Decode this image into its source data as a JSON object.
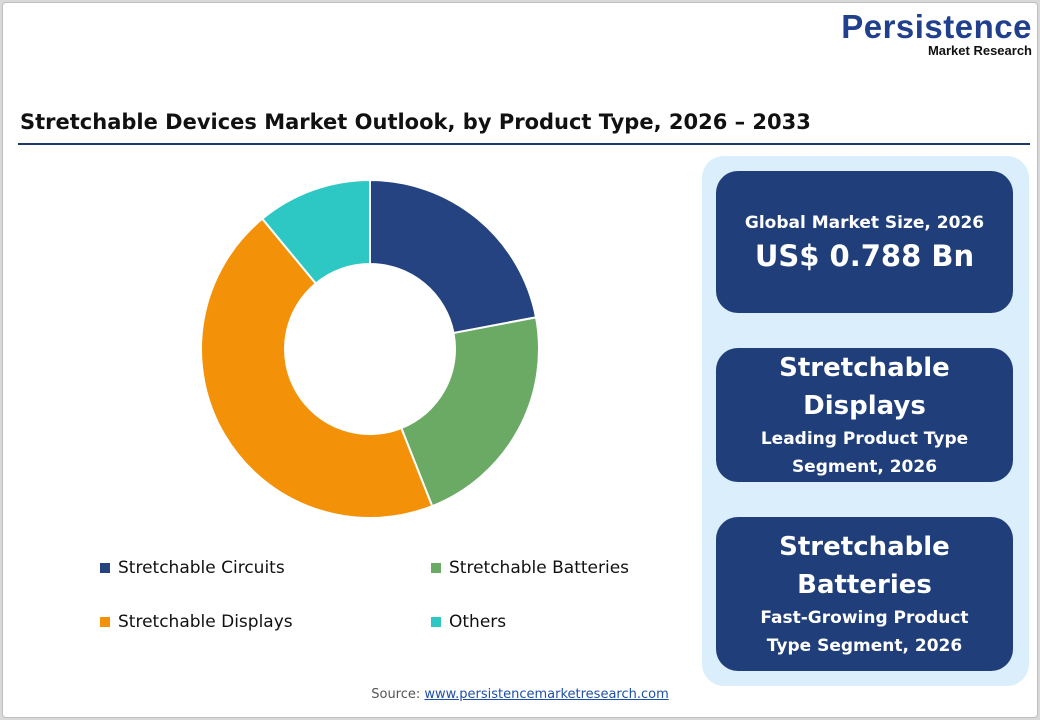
{
  "logo": {
    "main": "Persistence",
    "sub": "Market Research"
  },
  "chart_data": {
    "type": "pie",
    "subtype": "donut",
    "title": "Stretchable Devices Market Outlook, by Product Type, 2026 – 2033",
    "categories": [
      "Stretchable Circuits",
      "Stretchable Batteries",
      "Stretchable Displays",
      "Others"
    ],
    "values": [
      22,
      22,
      45,
      11
    ],
    "unit": "%",
    "colors": [
      "#254380",
      "#6aaa64",
      "#f39208",
      "#2ec8c4"
    ],
    "legend_position": "bottom"
  },
  "info": {
    "market_size_label": "Global Market Size, 2026",
    "market_size_value": "US$ 0.788 Bn",
    "leading_name": "Stretchable Displays",
    "leading_label": "Leading Product Type Segment, 2026",
    "growing_name": "Stretchable Batteries",
    "growing_label": "Fast-Growing Product Type Segment, 2026"
  },
  "source": {
    "label": "Source:",
    "link": "www.persistencemarketresearch.com"
  }
}
